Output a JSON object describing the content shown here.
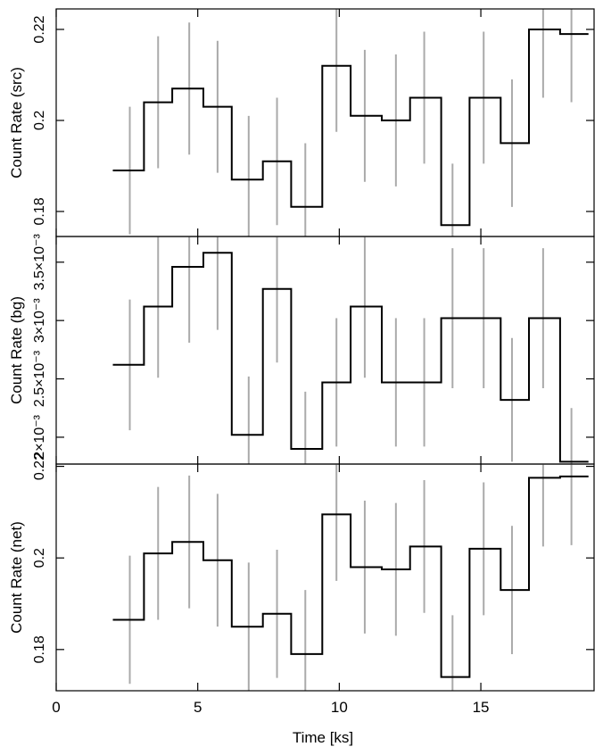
{
  "chart_data": {
    "type": "line",
    "style": "step-histogram-with-error-bars",
    "xlabel": "Time [ks]",
    "xlim": [
      0,
      19
    ],
    "x_ticks": [
      "0",
      "5",
      "10",
      "15"
    ],
    "bin_edges": [
      2.0,
      3.1,
      4.1,
      5.2,
      6.2,
      7.3,
      8.3,
      9.4,
      10.4,
      11.5,
      12.5,
      13.6,
      14.6,
      15.7,
      16.7,
      17.8,
      18.8
    ],
    "bin_centers": [
      2.6,
      3.6,
      4.7,
      5.7,
      6.8,
      7.8,
      8.8,
      9.9,
      10.9,
      12.0,
      13.0,
      14.0,
      15.1,
      16.1,
      17.2,
      18.2
    ],
    "colors": {
      "step": "#000000",
      "error_bar": "#aaaaaa",
      "axes": "#000000"
    },
    "panels": [
      {
        "name": "src",
        "ylabel": "Count Rate (src)",
        "ylim": [
          0.1745,
          0.2245
        ],
        "y_ticks": [
          {
            "value": 0.18,
            "label": "0.18"
          },
          {
            "value": 0.2,
            "label": "0.2"
          },
          {
            "value": 0.22,
            "label": "0.22"
          }
        ],
        "values": [
          0.189,
          0.204,
          0.207,
          0.203,
          0.187,
          0.191,
          0.181,
          0.212,
          0.201,
          0.2,
          0.205,
          0.177,
          0.205,
          0.195,
          0.22,
          0.219
        ],
        "errors": [
          0.014,
          0.0145,
          0.0145,
          0.0145,
          0.014,
          0.014,
          0.014,
          0.0145,
          0.0145,
          0.0145,
          0.0145,
          0.0135,
          0.0145,
          0.014,
          0.015,
          0.015
        ]
      },
      {
        "name": "bg",
        "ylabel": "Count Rate (bg)",
        "ylim": [
          0.00177,
          0.00372
        ],
        "y_ticks": [
          {
            "value": 0.002,
            "label": "2×10⁻³"
          },
          {
            "value": 0.0025,
            "label": "2.5×10⁻³"
          },
          {
            "value": 0.003,
            "label": "3×10⁻³"
          },
          {
            "value": 0.0035,
            "label": "3.5×10⁻³"
          }
        ],
        "values": [
          0.00262,
          0.00312,
          0.00346,
          0.00358,
          0.00202,
          0.00327,
          0.0019,
          0.00247,
          0.00312,
          0.00247,
          0.00247,
          0.00302,
          0.00302,
          0.00232,
          0.00302,
          0.00179
        ],
        "errors": [
          0.00056,
          0.00061,
          0.00065,
          0.00066,
          0.0005,
          0.00063,
          0.00049,
          0.00055,
          0.00061,
          0.00055,
          0.00055,
          0.0006,
          0.0006,
          0.00053,
          0.0006,
          0.00046
        ]
      },
      {
        "name": "net",
        "ylabel": "Count Rate (net)",
        "ylim": [
          0.171,
          0.2205
        ],
        "y_ticks": [
          {
            "value": 0.18,
            "label": "0.18"
          },
          {
            "value": 0.2,
            "label": "0.2"
          },
          {
            "value": 0.22,
            "label": "0.22"
          }
        ],
        "values": [
          0.1865,
          0.201,
          0.2035,
          0.1995,
          0.185,
          0.1878,
          0.179,
          0.2095,
          0.198,
          0.1975,
          0.2025,
          0.174,
          0.202,
          0.193,
          0.2175,
          0.2178
        ],
        "errors": [
          0.014,
          0.0145,
          0.0145,
          0.0145,
          0.014,
          0.014,
          0.014,
          0.0145,
          0.0145,
          0.0145,
          0.0145,
          0.0135,
          0.0145,
          0.014,
          0.015,
          0.015
        ]
      }
    ]
  }
}
